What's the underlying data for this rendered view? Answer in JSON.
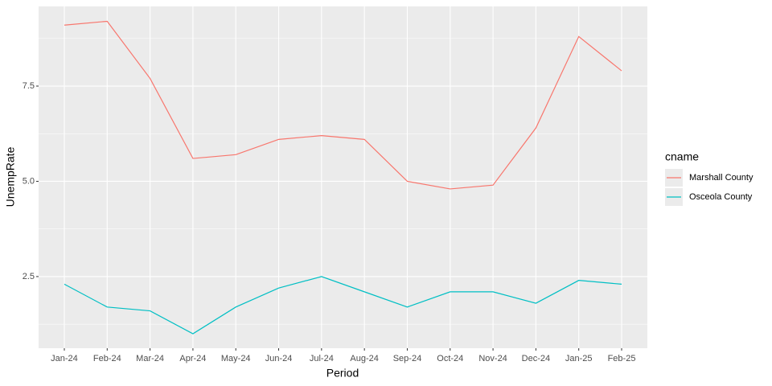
{
  "chart_data": {
    "type": "line",
    "x_label": "Period",
    "y_label": "UnempRate",
    "legend_title": "cname",
    "legend_position": "right",
    "categories": [
      "Jan-24",
      "Feb-24",
      "Mar-24",
      "Apr-24",
      "May-24",
      "Jun-24",
      "Jul-24",
      "Aug-24",
      "Sep-24",
      "Oct-24",
      "Nov-24",
      "Dec-24",
      "Jan-25",
      "Feb-25"
    ],
    "series": [
      {
        "name": "Marshall County",
        "color": "#F8766D",
        "values": [
          9.1,
          9.2,
          7.7,
          5.6,
          5.7,
          6.1,
          6.2,
          6.1,
          5.0,
          4.8,
          4.9,
          6.4,
          8.8,
          7.9
        ]
      },
      {
        "name": "Osceola County",
        "color": "#00BFC4",
        "values": [
          2.3,
          1.7,
          1.6,
          1.0,
          1.7,
          2.2,
          2.5,
          2.1,
          1.7,
          2.1,
          2.1,
          1.8,
          2.4,
          2.3
        ]
      }
    ],
    "ylim": [
      0.62,
      9.59
    ],
    "yticks": [
      2.5,
      {
        "value": 5,
        "label": "5.0"
      },
      7.5
    ],
    "grid": true
  }
}
